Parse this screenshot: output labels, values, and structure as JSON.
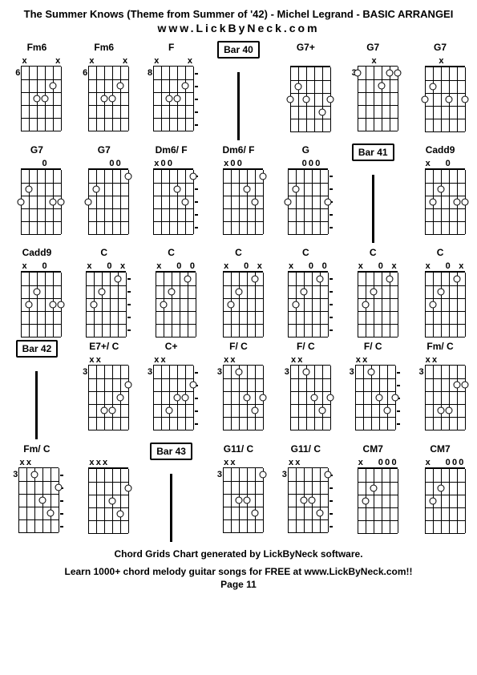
{
  "title": "The Summer Knows (Theme from Summer of '42) - Michel Legrand   - BASIC ARRANGEI",
  "subtitle": "www.LickByNeck.com",
  "footer1": "Chord Grids Chart generated by LickByNeck software.",
  "footer2": "Learn 1000+ chord melody guitar songs for FREE at www.LickByNeck.com!!",
  "page": "Page 11",
  "strings": 6,
  "frets": 5,
  "chords": [
    {
      "name": "Fm6",
      "fretLabel": "6",
      "marks": [
        "x",
        "",
        "",
        "",
        "",
        "x"
      ],
      "dots": [
        [
          3,
          3
        ],
        [
          4,
          3
        ],
        [
          5,
          2
        ]
      ],
      "dashed": false
    },
    {
      "name": "Fm6",
      "fretLabel": "6",
      "marks": [
        "x",
        "",
        "",
        "",
        "",
        "x"
      ],
      "dots": [
        [
          3,
          3
        ],
        [
          4,
          3
        ],
        [
          5,
          2
        ]
      ],
      "dashed": false
    },
    {
      "name": "F",
      "fretLabel": "8",
      "marks": [
        "x",
        "",
        "",
        "",
        "",
        "x"
      ],
      "dots": [
        [
          3,
          3
        ],
        [
          4,
          3
        ],
        [
          5,
          2
        ]
      ],
      "dashed": true
    },
    {
      "name": "Bar 40",
      "bar": true
    },
    {
      "name": "G7+",
      "fretLabel": "",
      "marks": [
        "",
        "",
        "",
        "",
        "",
        ""
      ],
      "dots": [
        [
          1,
          3
        ],
        [
          2,
          2
        ],
        [
          3,
          3
        ],
        [
          5,
          4
        ],
        [
          6,
          3
        ]
      ],
      "dashed": false
    },
    {
      "name": "G7",
      "fretLabel": "3",
      "marks": [
        "",
        "",
        "x",
        "",
        "",
        ""
      ],
      "dots": [
        [
          1,
          1
        ],
        [
          4,
          2
        ],
        [
          5,
          1
        ],
        [
          6,
          1
        ]
      ],
      "dashed": false
    },
    {
      "name": "G7",
      "fretLabel": "",
      "marks": [
        "",
        "",
        "x",
        "",
        "",
        ""
      ],
      "dots": [
        [
          1,
          3
        ],
        [
          2,
          2
        ],
        [
          4,
          3
        ],
        [
          6,
          3
        ]
      ],
      "dashed": false
    },
    {
      "name": "G7",
      "fretLabel": "",
      "marks": [
        "",
        "",
        "",
        "0",
        "",
        ""
      ],
      "dots": [
        [
          1,
          3
        ],
        [
          2,
          2
        ],
        [
          5,
          3
        ],
        [
          6,
          3
        ]
      ],
      "dashed": false
    },
    {
      "name": "G7",
      "fretLabel": "",
      "marks": [
        "",
        "",
        "",
        "0",
        "0",
        ""
      ],
      "dots": [
        [
          1,
          3
        ],
        [
          2,
          2
        ],
        [
          6,
          1
        ]
      ],
      "dashed": false
    },
    {
      "name": "Dm6/ F",
      "fretLabel": "",
      "marks": [
        "x",
        "0",
        "0",
        "",
        "",
        ""
      ],
      "dots": [
        [
          4,
          2
        ],
        [
          5,
          3
        ],
        [
          6,
          1
        ]
      ],
      "dashed": true
    },
    {
      "name": "Dm6/ F",
      "fretLabel": "",
      "marks": [
        "x",
        "0",
        "0",
        "",
        "",
        ""
      ],
      "dots": [
        [
          4,
          2
        ],
        [
          5,
          3
        ],
        [
          6,
          1
        ]
      ],
      "dashed": false
    },
    {
      "name": "G",
      "fretLabel": "",
      "marks": [
        "",
        "",
        "0",
        "0",
        "0",
        ""
      ],
      "dots": [
        [
          1,
          3
        ],
        [
          2,
          2
        ],
        [
          6,
          3
        ]
      ],
      "dashed": true
    },
    {
      "name": "Bar 41",
      "bar": true
    },
    {
      "name": "Cadd9",
      "fretLabel": "",
      "marks": [
        "x",
        "",
        "",
        "0",
        "",
        ""
      ],
      "dots": [
        [
          2,
          3
        ],
        [
          3,
          2
        ],
        [
          5,
          3
        ],
        [
          6,
          3
        ]
      ],
      "dashed": false
    },
    {
      "name": "Cadd9",
      "fretLabel": "",
      "marks": [
        "x",
        "",
        "",
        "0",
        "",
        ""
      ],
      "dots": [
        [
          2,
          3
        ],
        [
          3,
          2
        ],
        [
          5,
          3
        ],
        [
          6,
          3
        ]
      ],
      "dashed": false
    },
    {
      "name": "C",
      "fretLabel": "",
      "marks": [
        "x",
        "",
        "",
        "0",
        "",
        "x"
      ],
      "dots": [
        [
          2,
          3
        ],
        [
          3,
          2
        ],
        [
          5,
          1
        ]
      ],
      "dashed": true
    },
    {
      "name": "C",
      "fretLabel": "",
      "marks": [
        "x",
        "",
        "",
        "0",
        "",
        "0"
      ],
      "dots": [
        [
          2,
          3
        ],
        [
          3,
          2
        ],
        [
          5,
          1
        ]
      ],
      "dashed": false
    },
    {
      "name": "C",
      "fretLabel": "",
      "marks": [
        "x",
        "",
        "",
        "0",
        "",
        "x"
      ],
      "dots": [
        [
          2,
          3
        ],
        [
          3,
          2
        ],
        [
          5,
          1
        ]
      ],
      "dashed": false
    },
    {
      "name": "C",
      "fretLabel": "",
      "marks": [
        "x",
        "",
        "",
        "0",
        "",
        "0"
      ],
      "dots": [
        [
          2,
          3
        ],
        [
          3,
          2
        ],
        [
          5,
          1
        ]
      ],
      "dashed": true
    },
    {
      "name": "C",
      "fretLabel": "",
      "marks": [
        "x",
        "",
        "",
        "0",
        "",
        "x"
      ],
      "dots": [
        [
          2,
          3
        ],
        [
          3,
          2
        ],
        [
          5,
          1
        ]
      ],
      "dashed": false
    },
    {
      "name": "C",
      "fretLabel": "",
      "marks": [
        "x",
        "",
        "",
        "0",
        "",
        "x"
      ],
      "dots": [
        [
          2,
          3
        ],
        [
          3,
          2
        ],
        [
          5,
          1
        ]
      ],
      "dashed": false
    },
    {
      "name": "Bar 42",
      "bar": true
    },
    {
      "name": "E7+/ C",
      "fretLabel": "3",
      "marks": [
        "x",
        "x",
        "",
        "",
        "",
        ""
      ],
      "dots": [
        [
          3,
          4
        ],
        [
          4,
          4
        ],
        [
          5,
          3
        ],
        [
          6,
          2
        ]
      ],
      "dashed": false
    },
    {
      "name": "C+",
      "fretLabel": "3",
      "marks": [
        "x",
        "x",
        "",
        "",
        "",
        ""
      ],
      "dots": [
        [
          3,
          4
        ],
        [
          4,
          3
        ],
        [
          5,
          3
        ],
        [
          6,
          2
        ]
      ],
      "dashed": true
    },
    {
      "name": "F/ C",
      "fretLabel": "3",
      "marks": [
        "x",
        "x",
        "",
        "",
        "",
        ""
      ],
      "dots": [
        [
          3,
          1
        ],
        [
          4,
          3
        ],
        [
          5,
          4
        ],
        [
          6,
          3
        ]
      ],
      "dashed": false
    },
    {
      "name": "F/ C",
      "fretLabel": "3",
      "marks": [
        "x",
        "x",
        "",
        "",
        "",
        ""
      ],
      "dots": [
        [
          3,
          1
        ],
        [
          4,
          3
        ],
        [
          5,
          4
        ],
        [
          6,
          3
        ]
      ],
      "dashed": false
    },
    {
      "name": "F/ C",
      "fretLabel": "3",
      "marks": [
        "x",
        "x",
        "",
        "",
        "",
        ""
      ],
      "dots": [
        [
          3,
          1
        ],
        [
          4,
          3
        ],
        [
          5,
          4
        ],
        [
          6,
          3
        ]
      ],
      "dashed": true
    },
    {
      "name": "Fm/ C",
      "fretLabel": "3",
      "marks": [
        "x",
        "x",
        "",
        "",
        "",
        ""
      ],
      "dots": [
        [
          3,
          4
        ],
        [
          4,
          4
        ],
        [
          5,
          2
        ],
        [
          6,
          2
        ]
      ],
      "dashed": false
    },
    {
      "name": "Fm/ C",
      "fretLabel": "3",
      "marks": [
        "x",
        "x",
        "",
        "",
        "",
        ""
      ],
      "dots": [
        [
          3,
          1
        ],
        [
          4,
          3
        ],
        [
          5,
          4
        ],
        [
          6,
          2
        ]
      ],
      "dashed": true
    },
    {
      "name": "",
      "fretLabel": "",
      "marks": [
        "x",
        "x",
        "x",
        "",
        "",
        ""
      ],
      "dots": [
        [
          4,
          3
        ],
        [
          5,
          4
        ],
        [
          6,
          2
        ]
      ],
      "dashed": false,
      "noName": true
    },
    {
      "name": "Bar 43",
      "bar": true
    },
    {
      "name": "G11/ C",
      "fretLabel": "3",
      "marks": [
        "x",
        "x",
        "",
        "",
        "",
        ""
      ],
      "dots": [
        [
          3,
          3
        ],
        [
          4,
          3
        ],
        [
          5,
          4
        ],
        [
          6,
          1
        ]
      ],
      "dashed": false
    },
    {
      "name": "G11/ C",
      "fretLabel": "3",
      "marks": [
        "x",
        "x",
        "",
        "",
        "",
        ""
      ],
      "dots": [
        [
          3,
          3
        ],
        [
          4,
          3
        ],
        [
          5,
          4
        ],
        [
          6,
          1
        ]
      ],
      "dashed": true
    },
    {
      "name": "CM7",
      "fretLabel": "",
      "marks": [
        "x",
        "",
        "",
        "0",
        "0",
        "0"
      ],
      "dots": [
        [
          2,
          3
        ],
        [
          3,
          2
        ]
      ],
      "dashed": false
    },
    {
      "name": "CM7",
      "fretLabel": "",
      "marks": [
        "x",
        "",
        "",
        "0",
        "0",
        "0"
      ],
      "dots": [
        [
          2,
          3
        ],
        [
          3,
          2
        ]
      ],
      "dashed": false
    }
  ]
}
